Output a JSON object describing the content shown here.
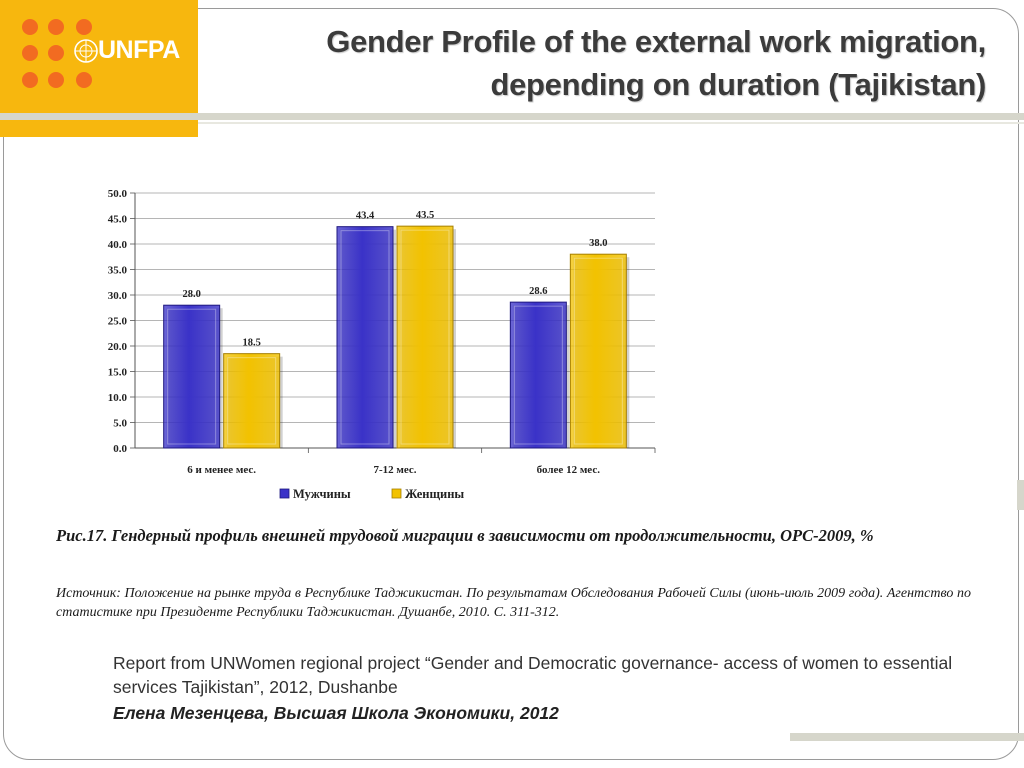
{
  "logo": {
    "brand": "UNFPA",
    "background": "#f7b70e",
    "dot_color": "#f26b21",
    "emblem": "un-emblem-icon"
  },
  "slide": {
    "title_line1": "Gender Profile of the external work migration,",
    "title_line2": "depending on duration (Tajikistan)"
  },
  "chart_data": {
    "type": "bar",
    "categories": [
      "6 и менее мес.",
      "7-12 мес.",
      "более 12 мес."
    ],
    "series": [
      {
        "name": "Мужчины",
        "values": [
          28.0,
          43.4,
          28.6
        ],
        "color": "#3a32c8"
      },
      {
        "name": "Женщины",
        "values": [
          18.5,
          43.5,
          38.0
        ],
        "color": "#f2c200"
      }
    ],
    "value_labels": [
      [
        "28.0",
        "43.4",
        "28.6"
      ],
      [
        "18.5",
        "43.5",
        "38.0"
      ]
    ],
    "yticks": [
      "0.0",
      "5.0",
      "10.0",
      "15.0",
      "20.0",
      "25.0",
      "30.0",
      "35.0",
      "40.0",
      "45.0",
      "50.0"
    ],
    "ylim": [
      0,
      50
    ],
    "grid": true,
    "legend_position": "bottom"
  },
  "caption": {
    "figure": "Рис.17. Гендерный профиль внешней трудовой миграции в зависимости от продолжительности, ОРС-2009, %",
    "source": "Источник: Положение на рынке труда в Республике Таджикистан. По результатам Обследования Рабочей Силы (июнь-июль 2009 года). Агентство по статистике при Президенте Республики Таджикистан. Душанбе, 2010. С. 311-312."
  },
  "footer": {
    "report": "Report from UNWomen regional project “Gender and Democratic governance- access of women to essential services Tajikistan”, 2012, Dushanbe",
    "author": "Елена Мезенцева, Высшая Школа Экономики, 2012"
  }
}
